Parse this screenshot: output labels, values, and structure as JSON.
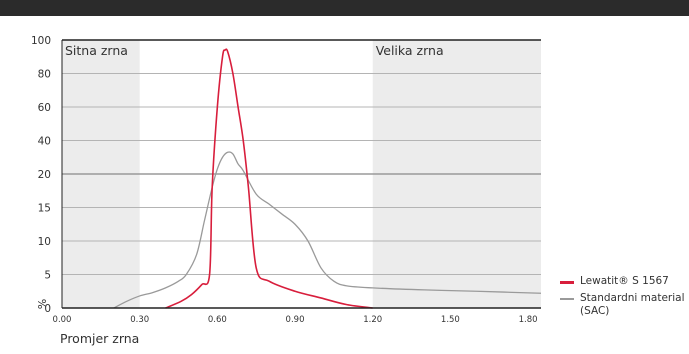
{
  "chart_data": {
    "type": "line",
    "xlabel": "Promjer zrna",
    "ylabel": "%",
    "x_ticks": [
      "0.00",
      "0.30",
      "0.60",
      "0.90",
      "1.20",
      "1.50",
      "1.80"
    ],
    "y_ticks_upper": [
      "100",
      "80",
      "60",
      "40",
      "20"
    ],
    "y_ticks_lower": [
      "20",
      "15",
      "10",
      "5",
      "0"
    ],
    "regions": [
      {
        "label": "Sitna zrna",
        "from": 0.0,
        "to": 0.3
      },
      {
        "label": "Velika zrna",
        "from": 1.2,
        "to": 1.85
      }
    ],
    "series": [
      {
        "name": "Lewatit® S 1567",
        "color": "#d81e3c",
        "x": [
          0.4,
          0.46,
          0.5,
          0.54,
          0.57,
          0.58,
          0.6,
          0.62,
          0.63,
          0.64,
          0.66,
          0.68,
          0.7,
          0.72,
          0.75,
          0.8,
          0.9,
          1.0,
          1.1,
          1.2
        ],
        "y": [
          0,
          1.0,
          2.0,
          3.5,
          5,
          18,
          60,
          90,
          94,
          93,
          80,
          60,
          40,
          18,
          6,
          4,
          2.5,
          1.5,
          0.5,
          0
        ]
      },
      {
        "name": "Standardni material (SAC)",
        "color": "#9a9a9a",
        "x": [
          0.2,
          0.25,
          0.3,
          0.35,
          0.4,
          0.45,
          0.48,
          0.52,
          0.55,
          0.58,
          0.6,
          0.62,
          0.64,
          0.66,
          0.68,
          0.7,
          0.75,
          0.8,
          0.85,
          0.9,
          0.95,
          1.0,
          1.05,
          1.1,
          1.2,
          1.4,
          1.6,
          1.85
        ],
        "y": [
          0,
          1.0,
          1.8,
          2.3,
          3.0,
          4.0,
          5.0,
          8.0,
          13,
          18,
          23,
          30,
          33,
          32,
          26,
          22,
          17,
          15.5,
          14,
          12.5,
          10,
          6,
          4,
          3.3,
          3.0,
          2.7,
          2.5,
          2.2
        ]
      }
    ]
  }
}
